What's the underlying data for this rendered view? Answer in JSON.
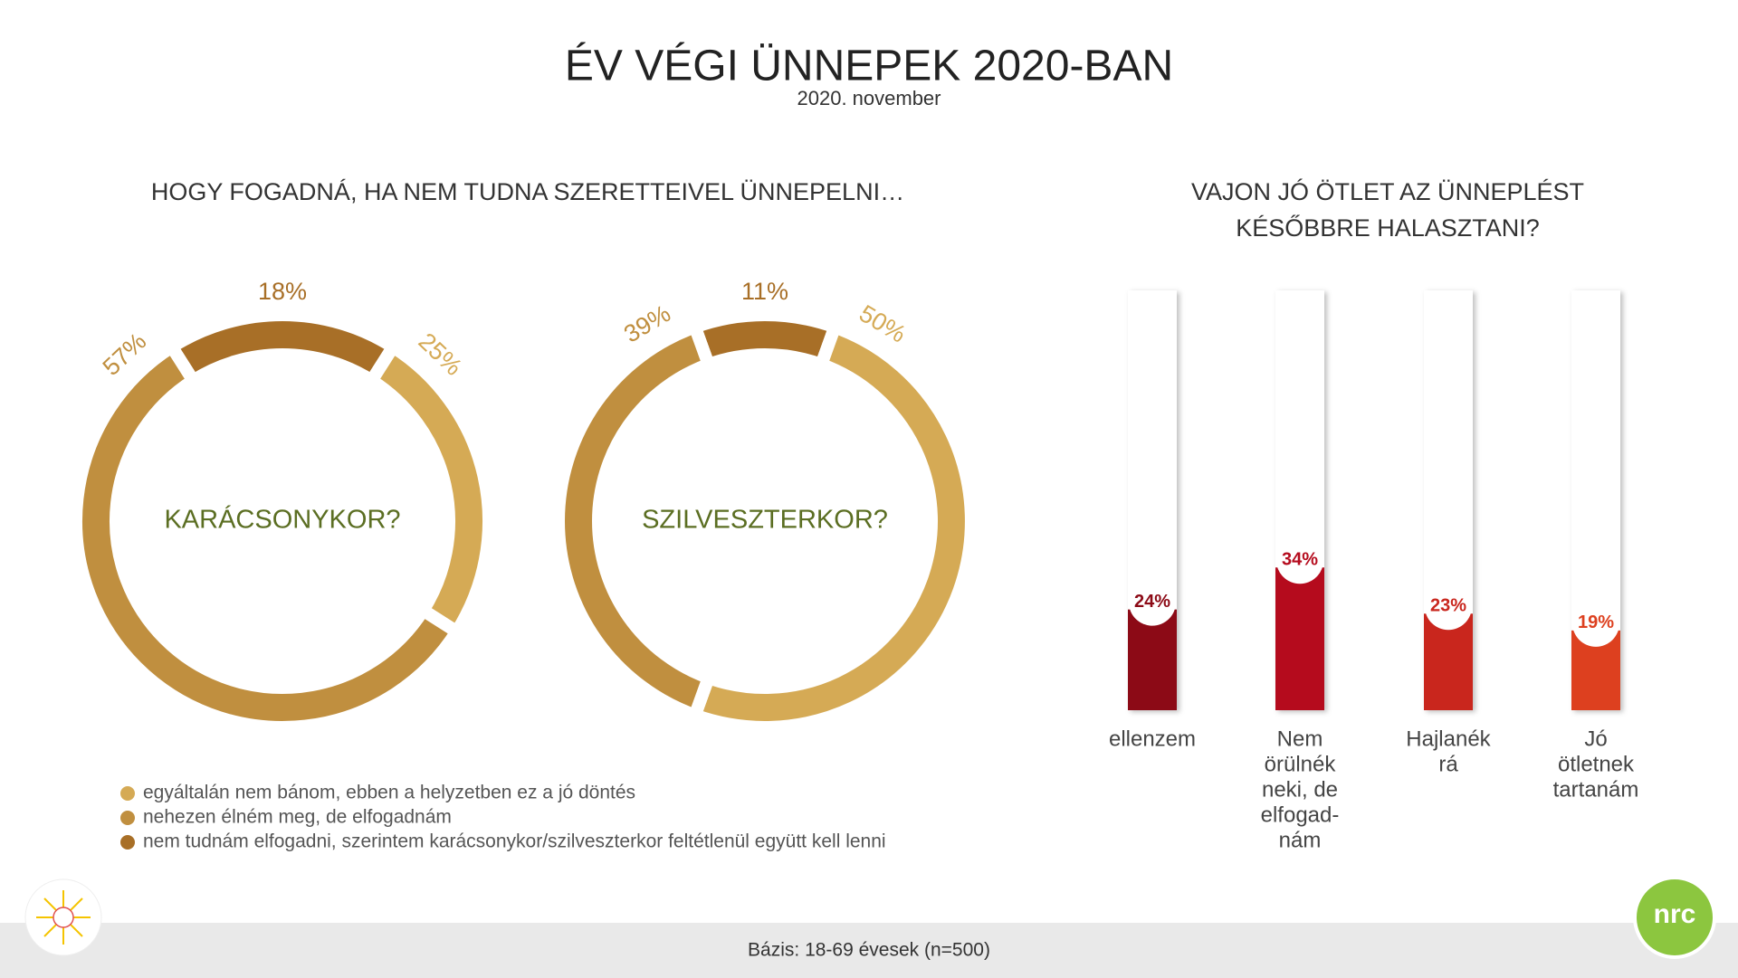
{
  "header": {
    "title": "ÉV VÉGI ÜNNEPEK 2020-BAN",
    "subtitle": "2020. november"
  },
  "footer": {
    "note": "Bázis: 18-69 évesek (n=500)",
    "logo": "nrc"
  },
  "chart_data": [
    {
      "type": "pie",
      "title": "HOGY FOGADNÁ, HA NEM TUDNA SZERETTEIVEL ÜNNEPELNI…",
      "categories": [
        "egyáltalán nem bánom, ebben a helyzetben ez a jó döntés",
        "nehezen élném meg, de elfogadnám",
        "nem tudnám elfogadni, szerintem karácsonykor/szilveszterkor feltétlenül együtt kell lenni"
      ],
      "colors": [
        "#d5aa55",
        "#c08f3f",
        "#a86f27"
      ],
      "series": [
        {
          "name": "KARÁCSONYKOR?",
          "values": [
            25,
            57,
            18
          ],
          "value_labels": [
            "25%",
            "57%",
            "18%"
          ]
        },
        {
          "name": "SZILVESZTERKOR?",
          "values": [
            50,
            39,
            11
          ],
          "value_labels": [
            "50%",
            "39%",
            "11%"
          ]
        }
      ]
    },
    {
      "type": "bar",
      "title": [
        "VAJON JÓ ÖTLET AZ ÜNNEPLÉST",
        "KÉSŐBBRE HALASZTANI?"
      ],
      "categories": [
        [
          "ellenzem"
        ],
        [
          "Nem",
          "örülnék",
          "neki, de",
          "elfogad-",
          "nám"
        ],
        [
          "Hajlanék",
          "rá"
        ],
        [
          "Jó",
          "ötletnek",
          "tartanám"
        ]
      ],
      "values": [
        24,
        34,
        23,
        19
      ],
      "value_labels": [
        "24%",
        "34%",
        "23%",
        "19%"
      ],
      "colors": [
        "#8c0a16",
        "#b50b1d",
        "#c9261d",
        "#dd401f"
      ],
      "ylim": [
        0,
        100
      ]
    }
  ]
}
